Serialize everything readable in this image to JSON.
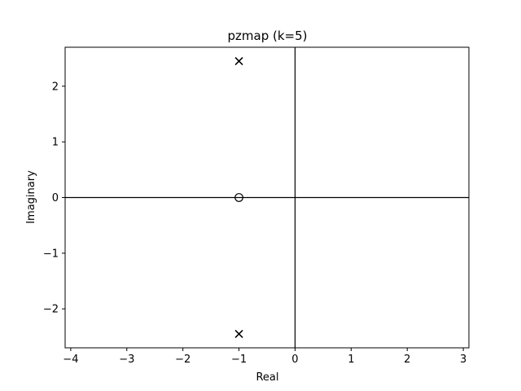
{
  "chart_data": {
    "type": "scatter",
    "title": "pzmap (k=5)",
    "xlabel": "Real",
    "ylabel": "Imaginary",
    "xlim": [
      -4.1,
      3.1
    ],
    "ylim": [
      -2.7,
      2.7
    ],
    "xticks": [
      -4,
      -3,
      -2,
      -1,
      0,
      1,
      2,
      3
    ],
    "xtick_labels": [
      "−4",
      "−3",
      "−2",
      "−1",
      "0",
      "1",
      "2",
      "3"
    ],
    "yticks": [
      -2,
      -1,
      0,
      1,
      2
    ],
    "ytick_labels": [
      "−2",
      "−1",
      "0",
      "1",
      "2"
    ],
    "grid": false,
    "reference_lines": {
      "x": 0,
      "y": 0
    },
    "series": [
      {
        "marker": "x",
        "points": [
          {
            "x": -1,
            "y": 2.45
          },
          {
            "x": -1,
            "y": -2.45
          }
        ]
      },
      {
        "marker": "o",
        "points": [
          {
            "x": -1,
            "y": 0
          }
        ]
      }
    ]
  }
}
